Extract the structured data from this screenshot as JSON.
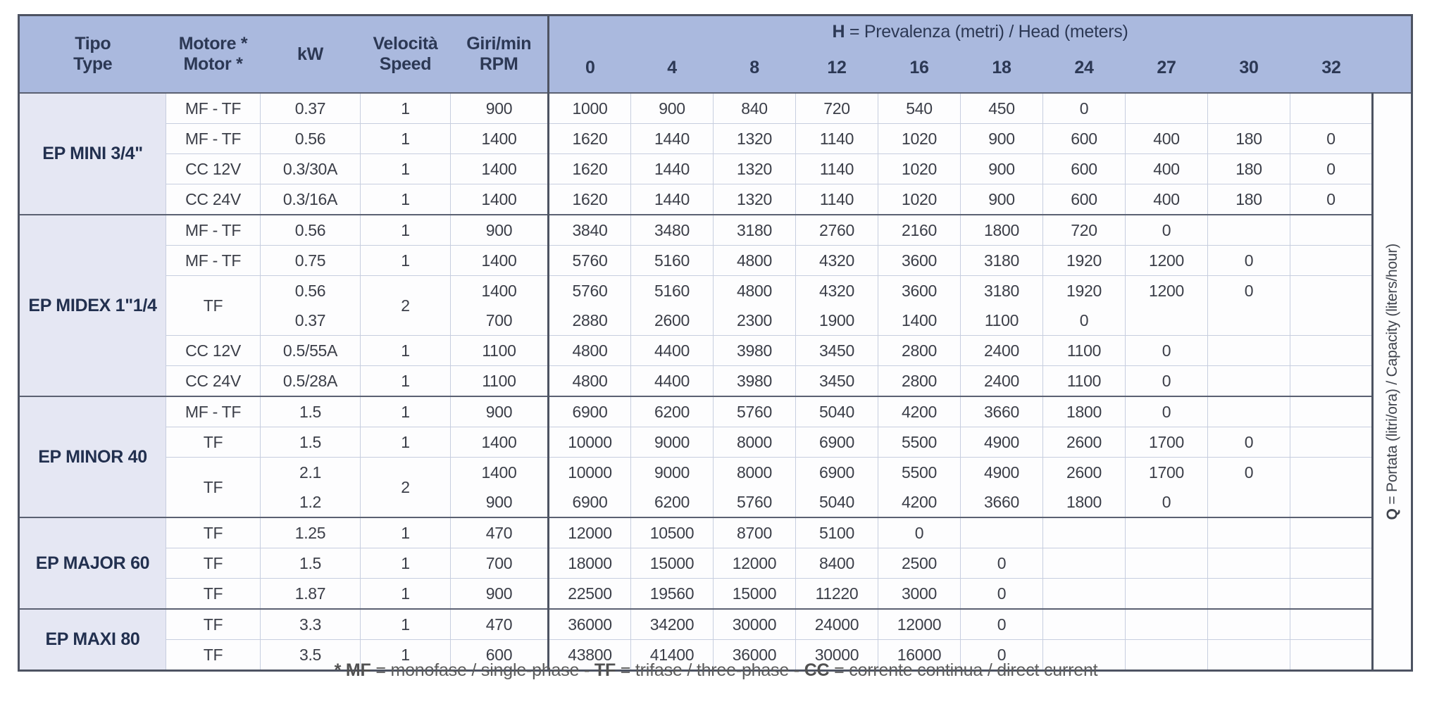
{
  "header": {
    "tipo": [
      "Tipo",
      "Type"
    ],
    "motore": [
      "Motore *",
      "Motor *"
    ],
    "kw": "kW",
    "velocita": [
      "Velocità",
      "Speed"
    ],
    "rpm": [
      "Giri/min",
      "RPM"
    ],
    "h_title": {
      "prefix": "H",
      "rest": " = Prevalenza (metri) / Head (meters)"
    },
    "h_columns": [
      "0",
      "4",
      "8",
      "12",
      "16",
      "18",
      "24",
      "27",
      "30",
      "32"
    ]
  },
  "q_label": {
    "prefix": "Q",
    "rest": " = Portata (litri/ora) / Capacity (liters/hour)"
  },
  "sections": [
    {
      "tipo": "EP MINI 3/4\"",
      "rows": [
        {
          "motore": "MF - TF",
          "kw": [
            "0.37"
          ],
          "speed": "1",
          "rpm": [
            "900"
          ],
          "h": [
            [
              "1000",
              "900",
              "840",
              "720",
              "540",
              "450",
              "0",
              "",
              "",
              ""
            ]
          ]
        },
        {
          "motore": "MF - TF",
          "kw": [
            "0.56"
          ],
          "speed": "1",
          "rpm": [
            "1400"
          ],
          "h": [
            [
              "1620",
              "1440",
              "1320",
              "1140",
              "1020",
              "900",
              "600",
              "400",
              "180",
              "0"
            ]
          ]
        },
        {
          "motore": "CC 12V",
          "kw": [
            "0.3/30A"
          ],
          "speed": "1",
          "rpm": [
            "1400"
          ],
          "h": [
            [
              "1620",
              "1440",
              "1320",
              "1140",
              "1020",
              "900",
              "600",
              "400",
              "180",
              "0"
            ]
          ]
        },
        {
          "motore": "CC 24V",
          "kw": [
            "0.3/16A"
          ],
          "speed": "1",
          "rpm": [
            "1400"
          ],
          "h": [
            [
              "1620",
              "1440",
              "1320",
              "1140",
              "1020",
              "900",
              "600",
              "400",
              "180",
              "0"
            ]
          ]
        }
      ]
    },
    {
      "tipo": "EP MIDEX 1\"1/4",
      "rows": [
        {
          "motore": "MF - TF",
          "kw": [
            "0.56"
          ],
          "speed": "1",
          "rpm": [
            "900"
          ],
          "h": [
            [
              "3840",
              "3480",
              "3180",
              "2760",
              "2160",
              "1800",
              "720",
              "0",
              "",
              ""
            ]
          ]
        },
        {
          "motore": "MF - TF",
          "kw": [
            "0.75"
          ],
          "speed": "1",
          "rpm": [
            "1400"
          ],
          "h": [
            [
              "5760",
              "5160",
              "4800",
              "4320",
              "3600",
              "3180",
              "1920",
              "1200",
              "0",
              ""
            ]
          ]
        },
        {
          "motore": "TF",
          "kw": [
            "0.56",
            "0.37"
          ],
          "speed": "2",
          "rpm": [
            "1400",
            "700"
          ],
          "h": [
            [
              "5760",
              "5160",
              "4800",
              "4320",
              "3600",
              "3180",
              "1920",
              "1200",
              "0",
              ""
            ],
            [
              "2880",
              "2600",
              "2300",
              "1900",
              "1400",
              "1100",
              "0",
              "",
              "",
              ""
            ]
          ]
        },
        {
          "motore": "CC 12V",
          "kw": [
            "0.5/55A"
          ],
          "speed": "1",
          "rpm": [
            "1100"
          ],
          "h": [
            [
              "4800",
              "4400",
              "3980",
              "3450",
              "2800",
              "2400",
              "1100",
              "0",
              "",
              ""
            ]
          ]
        },
        {
          "motore": "CC 24V",
          "kw": [
            "0.5/28A"
          ],
          "speed": "1",
          "rpm": [
            "1100"
          ],
          "h": [
            [
              "4800",
              "4400",
              "3980",
              "3450",
              "2800",
              "2400",
              "1100",
              "0",
              "",
              ""
            ]
          ]
        }
      ]
    },
    {
      "tipo": "EP MINOR 40",
      "rows": [
        {
          "motore": "MF - TF",
          "kw": [
            "1.5"
          ],
          "speed": "1",
          "rpm": [
            "900"
          ],
          "h": [
            [
              "6900",
              "6200",
              "5760",
              "5040",
              "4200",
              "3660",
              "1800",
              "0",
              "",
              ""
            ]
          ]
        },
        {
          "motore": "TF",
          "kw": [
            "1.5"
          ],
          "speed": "1",
          "rpm": [
            "1400"
          ],
          "h": [
            [
              "10000",
              "9000",
              "8000",
              "6900",
              "5500",
              "4900",
              "2600",
              "1700",
              "0",
              ""
            ]
          ]
        },
        {
          "motore": "TF",
          "kw": [
            "2.1",
            "1.2"
          ],
          "speed": "2",
          "rpm": [
            "1400",
            "900"
          ],
          "h": [
            [
              "10000",
              "9000",
              "8000",
              "6900",
              "5500",
              "4900",
              "2600",
              "1700",
              "0",
              ""
            ],
            [
              "6900",
              "6200",
              "5760",
              "5040",
              "4200",
              "3660",
              "1800",
              "0",
              "",
              ""
            ]
          ]
        }
      ]
    },
    {
      "tipo": "EP MAJOR 60",
      "rows": [
        {
          "motore": "TF",
          "kw": [
            "1.25"
          ],
          "speed": "1",
          "rpm": [
            "470"
          ],
          "h": [
            [
              "12000",
              "10500",
              "8700",
              "5100",
              "0",
              "",
              "",
              "",
              "",
              ""
            ]
          ]
        },
        {
          "motore": "TF",
          "kw": [
            "1.5"
          ],
          "speed": "1",
          "rpm": [
            "700"
          ],
          "h": [
            [
              "18000",
              "15000",
              "12000",
              "8400",
              "2500",
              "0",
              "",
              "",
              "",
              ""
            ]
          ]
        },
        {
          "motore": "TF",
          "kw": [
            "1.87"
          ],
          "speed": "1",
          "rpm": [
            "900"
          ],
          "h": [
            [
              "22500",
              "19560",
              "15000",
              "11220",
              "3000",
              "0",
              "",
              "",
              "",
              ""
            ]
          ]
        }
      ]
    },
    {
      "tipo": "EP MAXI 80",
      "rows": [
        {
          "motore": "TF",
          "kw": [
            "3.3"
          ],
          "speed": "1",
          "rpm": [
            "470"
          ],
          "h": [
            [
              "36000",
              "34200",
              "30000",
              "24000",
              "12000",
              "0",
              "",
              "",
              "",
              ""
            ]
          ]
        },
        {
          "motore": "TF",
          "kw": [
            "3.5"
          ],
          "speed": "1",
          "rpm": [
            "600"
          ],
          "h": [
            [
              "43800",
              "41400",
              "36000",
              "30000",
              "16000",
              "0",
              "",
              "",
              "",
              ""
            ]
          ]
        }
      ]
    }
  ],
  "footnote": {
    "parts": [
      {
        "text": "* MF",
        "bold": true
      },
      {
        "text": " = monofase / single-phase - ",
        "bold": false
      },
      {
        "text": "TF",
        "bold": true
      },
      {
        "text": " = trifase / three-phase - ",
        "bold": false
      },
      {
        "text": "CC",
        "bold": true
      },
      {
        "text": " = corrente continua / direct current",
        "bold": false
      }
    ]
  },
  "colors": {
    "header_bg": "#aab9de",
    "tipo_bg": "#e5e7f3",
    "grid_light": "#c7cedf",
    "grid_dark": "#4d5362",
    "header_text": "#2c3854",
    "body_text": "#3b3e48",
    "footnote_text": "#5c5c5c"
  }
}
